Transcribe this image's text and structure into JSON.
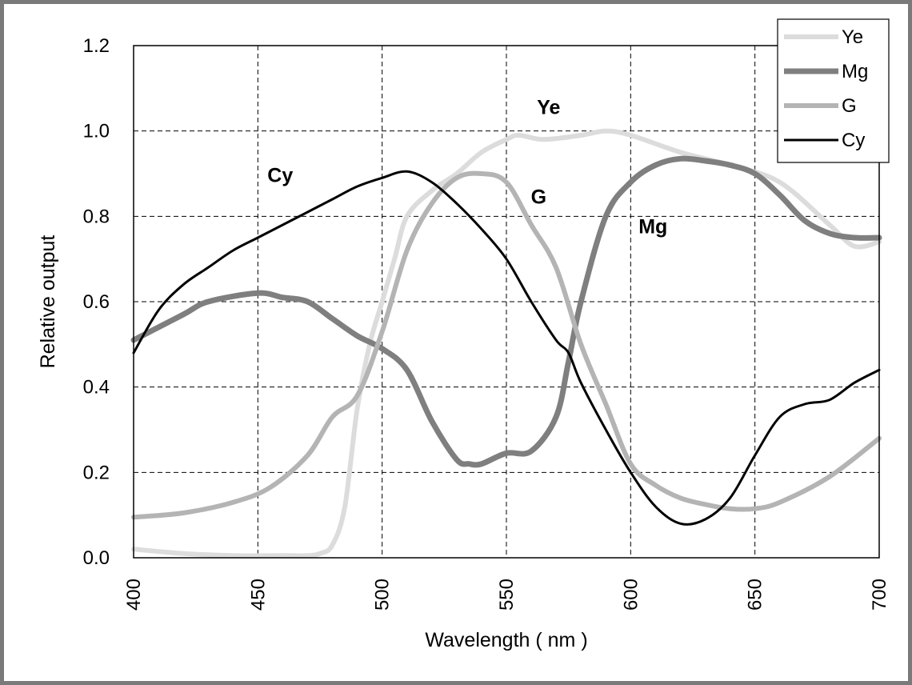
{
  "chart_data": {
    "type": "line",
    "title": "",
    "xlabel": "Wavelength ( nm )",
    "ylabel": "Relative output",
    "xlim": [
      400,
      700
    ],
    "ylim": [
      0.0,
      1.2
    ],
    "xticks": [
      400,
      450,
      500,
      550,
      600,
      650,
      700
    ],
    "yticks": [
      0.0,
      0.2,
      0.4,
      0.6,
      0.8,
      1.0,
      1.2
    ],
    "xtick_labels": [
      "400",
      "450",
      "500",
      "550",
      "600",
      "650",
      "700"
    ],
    "ytick_labels": [
      "0.0",
      "0.2",
      "0.4",
      "0.6",
      "0.8",
      "1.0",
      "1.2"
    ],
    "grid": true,
    "grid_style": "dashed",
    "legend_position": "top-right",
    "series": [
      {
        "name": "Ye",
        "color": "#dcdcdc",
        "x": [
          400,
          420,
          440,
          460,
          470,
          475,
          480,
          485,
          490,
          495,
          500,
          505,
          510,
          520,
          530,
          540,
          550,
          555,
          565,
          580,
          590,
          600,
          620,
          640,
          660,
          680,
          690,
          700
        ],
        "y": [
          0.02,
          0.01,
          0.005,
          0.005,
          0.005,
          0.01,
          0.03,
          0.12,
          0.35,
          0.5,
          0.6,
          0.7,
          0.8,
          0.86,
          0.9,
          0.95,
          0.98,
          0.99,
          0.98,
          0.99,
          1.0,
          0.99,
          0.95,
          0.92,
          0.88,
          0.78,
          0.73,
          0.74
        ]
      },
      {
        "name": "Mg",
        "color": "#7f7f7f",
        "x": [
          400,
          420,
          430,
          450,
          460,
          470,
          480,
          490,
          500,
          510,
          520,
          530,
          535,
          540,
          550,
          560,
          570,
          575,
          580,
          590,
          600,
          610,
          620,
          630,
          640,
          650,
          660,
          670,
          680,
          690,
          700
        ],
        "y": [
          0.51,
          0.57,
          0.6,
          0.62,
          0.61,
          0.6,
          0.56,
          0.52,
          0.49,
          0.44,
          0.32,
          0.23,
          0.22,
          0.22,
          0.245,
          0.25,
          0.33,
          0.46,
          0.6,
          0.8,
          0.88,
          0.92,
          0.935,
          0.93,
          0.92,
          0.9,
          0.85,
          0.79,
          0.76,
          0.75,
          0.75
        ]
      },
      {
        "name": "G",
        "color": "#b4b4b4",
        "x": [
          400,
          420,
          440,
          455,
          470,
          480,
          490,
          500,
          510,
          520,
          530,
          540,
          550,
          560,
          570,
          580,
          590,
          600,
          610,
          620,
          630,
          640,
          650,
          660,
          680,
          700
        ],
        "y": [
          0.095,
          0.105,
          0.13,
          0.165,
          0.24,
          0.33,
          0.38,
          0.53,
          0.72,
          0.83,
          0.89,
          0.9,
          0.88,
          0.78,
          0.68,
          0.5,
          0.36,
          0.22,
          0.17,
          0.14,
          0.125,
          0.115,
          0.115,
          0.13,
          0.19,
          0.28
        ]
      },
      {
        "name": "Cy",
        "color": "#000000",
        "x": [
          400,
          410,
          420,
          430,
          440,
          450,
          460,
          470,
          480,
          490,
          500,
          510,
          520,
          530,
          540,
          550,
          560,
          570,
          575,
          580,
          590,
          600,
          610,
          620,
          630,
          640,
          650,
          660,
          670,
          680,
          690,
          700
        ],
        "y": [
          0.48,
          0.58,
          0.64,
          0.68,
          0.72,
          0.75,
          0.78,
          0.81,
          0.84,
          0.87,
          0.89,
          0.905,
          0.88,
          0.83,
          0.77,
          0.7,
          0.6,
          0.51,
          0.48,
          0.41,
          0.3,
          0.2,
          0.12,
          0.08,
          0.09,
          0.14,
          0.24,
          0.33,
          0.36,
          0.37,
          0.41,
          0.44
        ]
      }
    ],
    "annotations": [
      {
        "text": "Cy",
        "x": 459,
        "y": 0.88
      },
      {
        "text": "Ye",
        "x": 567,
        "y": 1.04
      },
      {
        "text": "G",
        "x": 563,
        "y": 0.83
      },
      {
        "text": "Mg",
        "x": 609,
        "y": 0.76
      }
    ]
  }
}
